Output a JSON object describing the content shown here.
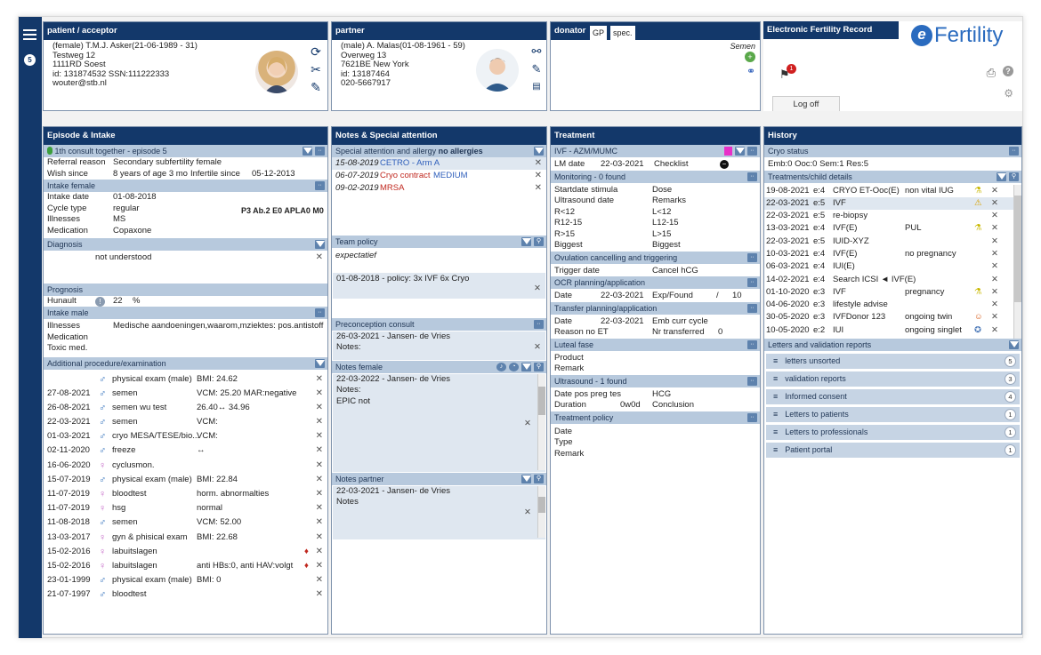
{
  "nav": {
    "badge": "5"
  },
  "patient": {
    "title": "patient / acceptor",
    "lines": [
      "(female) T.M.J. Asker(21-06-1989 - 31)",
      "Testweg 12",
      "1111RD Soest",
      "id: 131874532 SSN:111222333",
      "wouter@stb.nl"
    ]
  },
  "partner": {
    "title": "partner",
    "lines": [
      "(male) A. Malas(01-08-1961 - 59)",
      "Overweg 13",
      "7621BE New York",
      "id: 13187464",
      "020-5667917"
    ]
  },
  "donator": {
    "tabs": [
      "donator",
      "GP",
      "spec."
    ],
    "semen": "Semen"
  },
  "efr": {
    "title": "Electronic Fertility Record",
    "logo_e": "e",
    "logo_text": "Fertility",
    "logoff": "Log off",
    "notif": "1"
  },
  "episode": {
    "title": "Episode & Intake",
    "episode_label": "1th consult together - episode 5",
    "referral_k": "Referral reason",
    "referral_v": "Secondary subfertility female",
    "wish_k": "Wish since",
    "wish_v": "8 years of age 3 mo",
    "infertile_k": "Infertile since",
    "infertile_v": "05-12-2013",
    "intake_female": "Intake female",
    "if_rows": [
      [
        "Intake date",
        "01-08-2018"
      ],
      [
        "Cycle type",
        "regular"
      ],
      [
        "Illnesses",
        "MS"
      ],
      [
        "Medication",
        "Copaxone"
      ]
    ],
    "if_right": "P3 Ab.2 E0 APLA0 M0",
    "diagnosis": "Diagnosis",
    "diag_value": "not understood",
    "prognosis": "Prognosis",
    "hunault_k": "Hunault",
    "hunault_v": "22",
    "hunault_u": "%",
    "intake_male": "Intake male",
    "im_rows": [
      [
        "Illnesses",
        "Medische aandoeningen,waarom,mziektes: pos.antistoff"
      ],
      [
        "Medication",
        ""
      ],
      [
        "Toxic med.",
        ""
      ]
    ],
    "additional": "Additional procedure/examination",
    "proc": [
      {
        "d": "",
        "g": "m",
        "n": "physical exam (male)",
        "v": "BMI: 24.62",
        "drop": false
      },
      {
        "d": "27-08-2021",
        "g": "m",
        "n": "semen",
        "v": "VCM: 25.20 MAR:negative",
        "drop": false
      },
      {
        "d": "26-08-2021",
        "g": "m",
        "n": "semen wu test",
        "v": "26.40↔ 34.96",
        "drop": false
      },
      {
        "d": "22-03-2021",
        "g": "m",
        "n": "semen",
        "v": "VCM:",
        "drop": false
      },
      {
        "d": "01-03-2021",
        "g": "m",
        "n": "cryo MESA/TESE/bio...",
        "v": "VCM:",
        "drop": false
      },
      {
        "d": "02-11-2020",
        "g": "m",
        "n": "freeze",
        "v": "↔",
        "drop": false
      },
      {
        "d": "16-06-2020",
        "g": "f",
        "n": "cyclusmon.",
        "v": "",
        "drop": false
      },
      {
        "d": "15-07-2019",
        "g": "m",
        "n": "physical exam (male)",
        "v": "BMI: 22.84",
        "drop": false
      },
      {
        "d": "11-07-2019",
        "g": "f",
        "n": "bloodtest",
        "v": "horm. abnormalties",
        "drop": false
      },
      {
        "d": "11-07-2019",
        "g": "f",
        "n": "hsg",
        "v": "normal",
        "drop": false
      },
      {
        "d": "11-08-2018",
        "g": "m",
        "n": "semen",
        "v": "VCM: 52.00",
        "drop": false
      },
      {
        "d": "13-03-2017",
        "g": "f",
        "n": "gyn & phisical exam",
        "v": "BMI: 22.68",
        "drop": false
      },
      {
        "d": "15-02-2016",
        "g": "f",
        "n": "labuitslagen",
        "v": "",
        "drop": true
      },
      {
        "d": "15-02-2016",
        "g": "f",
        "n": "labuitslagen",
        "v": "anti HBs:0, anti HAV:volgt",
        "drop": true
      },
      {
        "d": "23-01-1999",
        "g": "m",
        "n": "physical exam (male)",
        "v": "BMI: 0",
        "drop": false
      },
      {
        "d": "21-07-1997",
        "g": "m",
        "n": "bloodtest",
        "v": "",
        "drop": false
      }
    ]
  },
  "notes": {
    "title": "Notes & Special attention",
    "special": "Special attention and allergy",
    "no_allergies": "no allergies",
    "special_rows": [
      {
        "d": "15-08-2019",
        "a": "CETRO - Arm A",
        "b": "",
        "ac": "blue"
      },
      {
        "d": "06-07-2019",
        "a": "Cryo contract",
        "b": "MEDIUM",
        "ac": "red"
      },
      {
        "d": "09-02-2019",
        "a": "MRSA",
        "b": "",
        "ac": "red"
      }
    ],
    "team": "Team policy",
    "team_text": "expectatief",
    "team_row": "01-08-2018 - policy: 3x IVF 6x Cryo",
    "precon": "Preconception consult",
    "precon_1": "26-03-2021 - Jansen- de Vries",
    "precon_2": "Notes:",
    "nf": "Notes female",
    "nf_1": "22-03-2022 - Jansen- de Vries",
    "nf_2": "Notes:",
    "nf_3": "EPIC not",
    "np": "Notes partner",
    "np_1": "22-03-2021 - Jansen- de Vries",
    "np_2": "Notes"
  },
  "treatment": {
    "title": "Treatment",
    "ivf": "IVF - AZM/MUMC",
    "lm_k": "LM date",
    "lm_v": "22-03-2021",
    "checklist": "Checklist",
    "monitoring": "Monitoring - 0 found",
    "mon_rows": [
      [
        "Startdate stimula",
        "Dose"
      ],
      [
        "Ultrasound date",
        "Remarks"
      ],
      [
        "R<12",
        "L<12"
      ],
      [
        "R12-15",
        "L12-15"
      ],
      [
        "R>15",
        "L>15"
      ],
      [
        "Biggest",
        "Biggest"
      ]
    ],
    "ovul": "Ovulation cancelling and triggering",
    "trig_k": "Trigger date",
    "trig_v": "Cancel hCG",
    "ocr": "OCR planning/application",
    "ocr_k": "Date",
    "ocr_d": "22-03-2021",
    "ocr_e": "Exp/Found",
    "ocr_s": "/",
    "ocr_n": "10",
    "transfer": "Transfer planning/application",
    "tr_k": "Date",
    "tr_d": "22-03-2021",
    "tr_e": "Emb curr cycle",
    "tr_r": "Reason no ET",
    "tr_n": "Nr transferred",
    "tr_nv": "0",
    "luteal": "Luteal fase",
    "lu_1": "Product",
    "lu_2": "Remark",
    "ultra": "Ultrasound - 1 found",
    "u_k1": "Date pos preg tes",
    "u_v1": "HCG",
    "u_k2": "Duration",
    "u_v2": "0w0d",
    "u_v3": "Conclusion",
    "policy": "Treatment policy",
    "pol": [
      "Date",
      "Type",
      "Remark"
    ]
  },
  "history": {
    "title": "History",
    "cryo": "Cryo status",
    "cryo_line": "Emb:0 Ooc:0 Sem:1 Res:5",
    "tcd": "Treatments/child details",
    "rows": [
      {
        "d": "19-08-2021",
        "e": "e:4",
        "t": "CRYO ET-Ooc(E)",
        "r": "non vital IUG",
        "i": "flask"
      },
      {
        "d": "22-03-2021",
        "e": "e:5",
        "t": "IVF",
        "r": "",
        "i": "warn"
      },
      {
        "d": "22-03-2021",
        "e": "e:5",
        "t": "re-biopsy",
        "r": "",
        "i": ""
      },
      {
        "d": "13-03-2021",
        "e": "e:4",
        "t": "IVF(E)",
        "r": "PUL",
        "i": "flask"
      },
      {
        "d": "22-03-2021",
        "e": "e:5",
        "t": "IUID-XYZ",
        "r": "",
        "i": ""
      },
      {
        "d": "10-03-2021",
        "e": "e:4",
        "t": "IVF(E)",
        "r": "no pregnancy",
        "i": ""
      },
      {
        "d": "06-03-2021",
        "e": "e:4",
        "t": "IUI(E)",
        "r": "",
        "i": ""
      },
      {
        "d": "14-02-2021",
        "e": "e:4",
        "t": "Search ICSI ◄ IVF(E)",
        "r": "",
        "i": ""
      },
      {
        "d": "01-10-2020",
        "e": "e:3",
        "t": "IVF",
        "r": "pregnancy",
        "i": "flask"
      },
      {
        "d": "04-06-2020",
        "e": "e:3",
        "t": "lifestyle advise",
        "r": "",
        "i": ""
      },
      {
        "d": "30-05-2020",
        "e": "e:3",
        "t": "IVFDonor 123",
        "r": "ongoing twin",
        "i": "baby"
      },
      {
        "d": "10-05-2020",
        "e": "e:2",
        "t": "IUI",
        "r": "ongoing singlet",
        "i": "badge"
      },
      {
        "d": "01-05-2020",
        "e": "e:2",
        "t": "IVF",
        "r": "ongoing singlet",
        "i": "baby"
      }
    ],
    "lvr": "Letters and validation reports",
    "letters": [
      [
        "letters unsorted",
        "5"
      ],
      [
        "validation reports",
        "3"
      ],
      [
        "Informed consent",
        "4"
      ],
      [
        "Letters to patients",
        "1"
      ],
      [
        "Letters to professionals",
        "1"
      ],
      [
        "Patient portal",
        "1"
      ]
    ]
  },
  "colors": {
    "nav": "#13386a",
    "subheader": "#b7c9dd",
    "magenta": "#e830c8"
  }
}
